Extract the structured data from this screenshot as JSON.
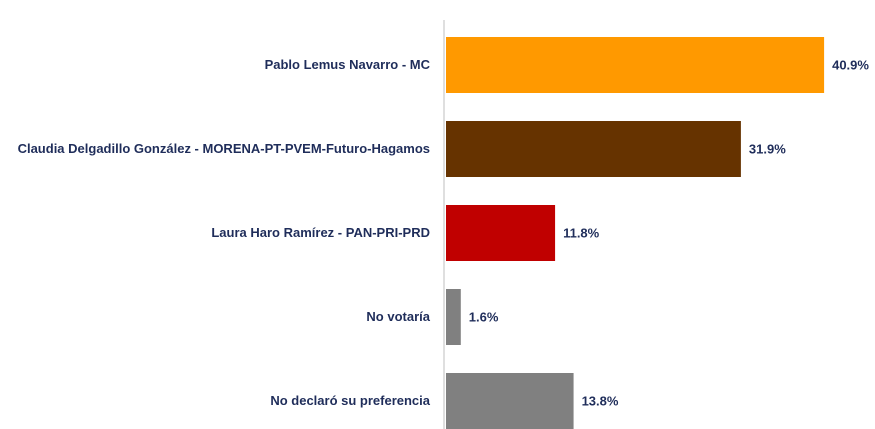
{
  "chart_data": {
    "type": "bar",
    "orientation": "horizontal",
    "categories": [
      "Pablo Lemus Navarro - MC",
      "Claudia Delgadillo González - MORENA-PT-PVEM-Futuro-Hagamos",
      "Laura Haro Ramírez - PAN-PRI-PRD",
      "No votaría",
      "No declaró su preferencia"
    ],
    "values": [
      40.9,
      31.9,
      11.8,
      1.6,
      13.8
    ],
    "value_labels": [
      "40.9%",
      "31.9%",
      "11.8%",
      "1.6%",
      "13.8%"
    ],
    "colors": [
      "#ff9900",
      "#663300",
      "#c00000",
      "#808080",
      "#808080"
    ],
    "xlim": [
      0,
      45
    ]
  }
}
